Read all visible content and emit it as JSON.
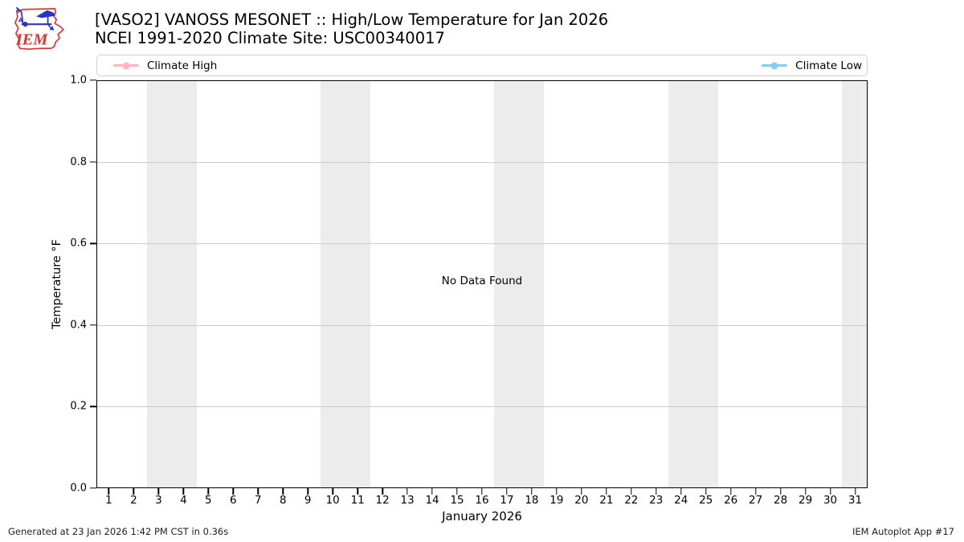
{
  "header": {
    "title_line1": "[VASO2] VANOSS MESONET :: High/Low Temperature for Jan 2026",
    "title_line2": "NCEI 1991-2020 Climate Site: USC00340017",
    "logo_text": "IEM"
  },
  "legend": {
    "items": [
      {
        "label": "Climate High",
        "color": "#ffb6c1"
      },
      {
        "label": "Climate Low",
        "color": "#87ceeb"
      }
    ]
  },
  "chart_data": {
    "type": "line",
    "title": "[VASO2] VANOSS MESONET :: High/Low Temperature for Jan 2026",
    "subtitle": "NCEI 1991-2020 Climate Site: USC00340017",
    "xlabel": "January 2026",
    "ylabel": "Temperature °F",
    "xlim": [
      0.5,
      31.5
    ],
    "ylim": [
      0.0,
      1.0
    ],
    "grid": "horizontal",
    "legend_position": "top, spread left/right",
    "ytick_values": [
      0.0,
      0.2,
      0.4,
      0.6,
      0.8,
      1.0
    ],
    "ytick_labels": [
      "0.0",
      "0.2",
      "0.4",
      "0.6",
      "0.8",
      "1.0"
    ],
    "xticks": [
      1,
      2,
      3,
      4,
      5,
      6,
      7,
      8,
      9,
      10,
      11,
      12,
      13,
      14,
      15,
      16,
      17,
      18,
      19,
      20,
      21,
      22,
      23,
      24,
      25,
      26,
      27,
      28,
      29,
      30,
      31
    ],
    "weekend_bands": [
      [
        2.5,
        4.5
      ],
      [
        9.5,
        11.5
      ],
      [
        16.5,
        18.5
      ],
      [
        23.5,
        25.5
      ],
      [
        30.5,
        31.5
      ]
    ],
    "band_color": "#ececec",
    "series": [
      {
        "name": "Climate High",
        "color": "#ffb6c1",
        "values": []
      },
      {
        "name": "Climate Low",
        "color": "#87ceeb",
        "values": []
      }
    ],
    "no_data_message": "No Data Found"
  },
  "footer": {
    "left": "Generated at 23 Jan 2026 1:42 PM CST in 0.36s",
    "right": "IEM Autoplot App #17"
  }
}
